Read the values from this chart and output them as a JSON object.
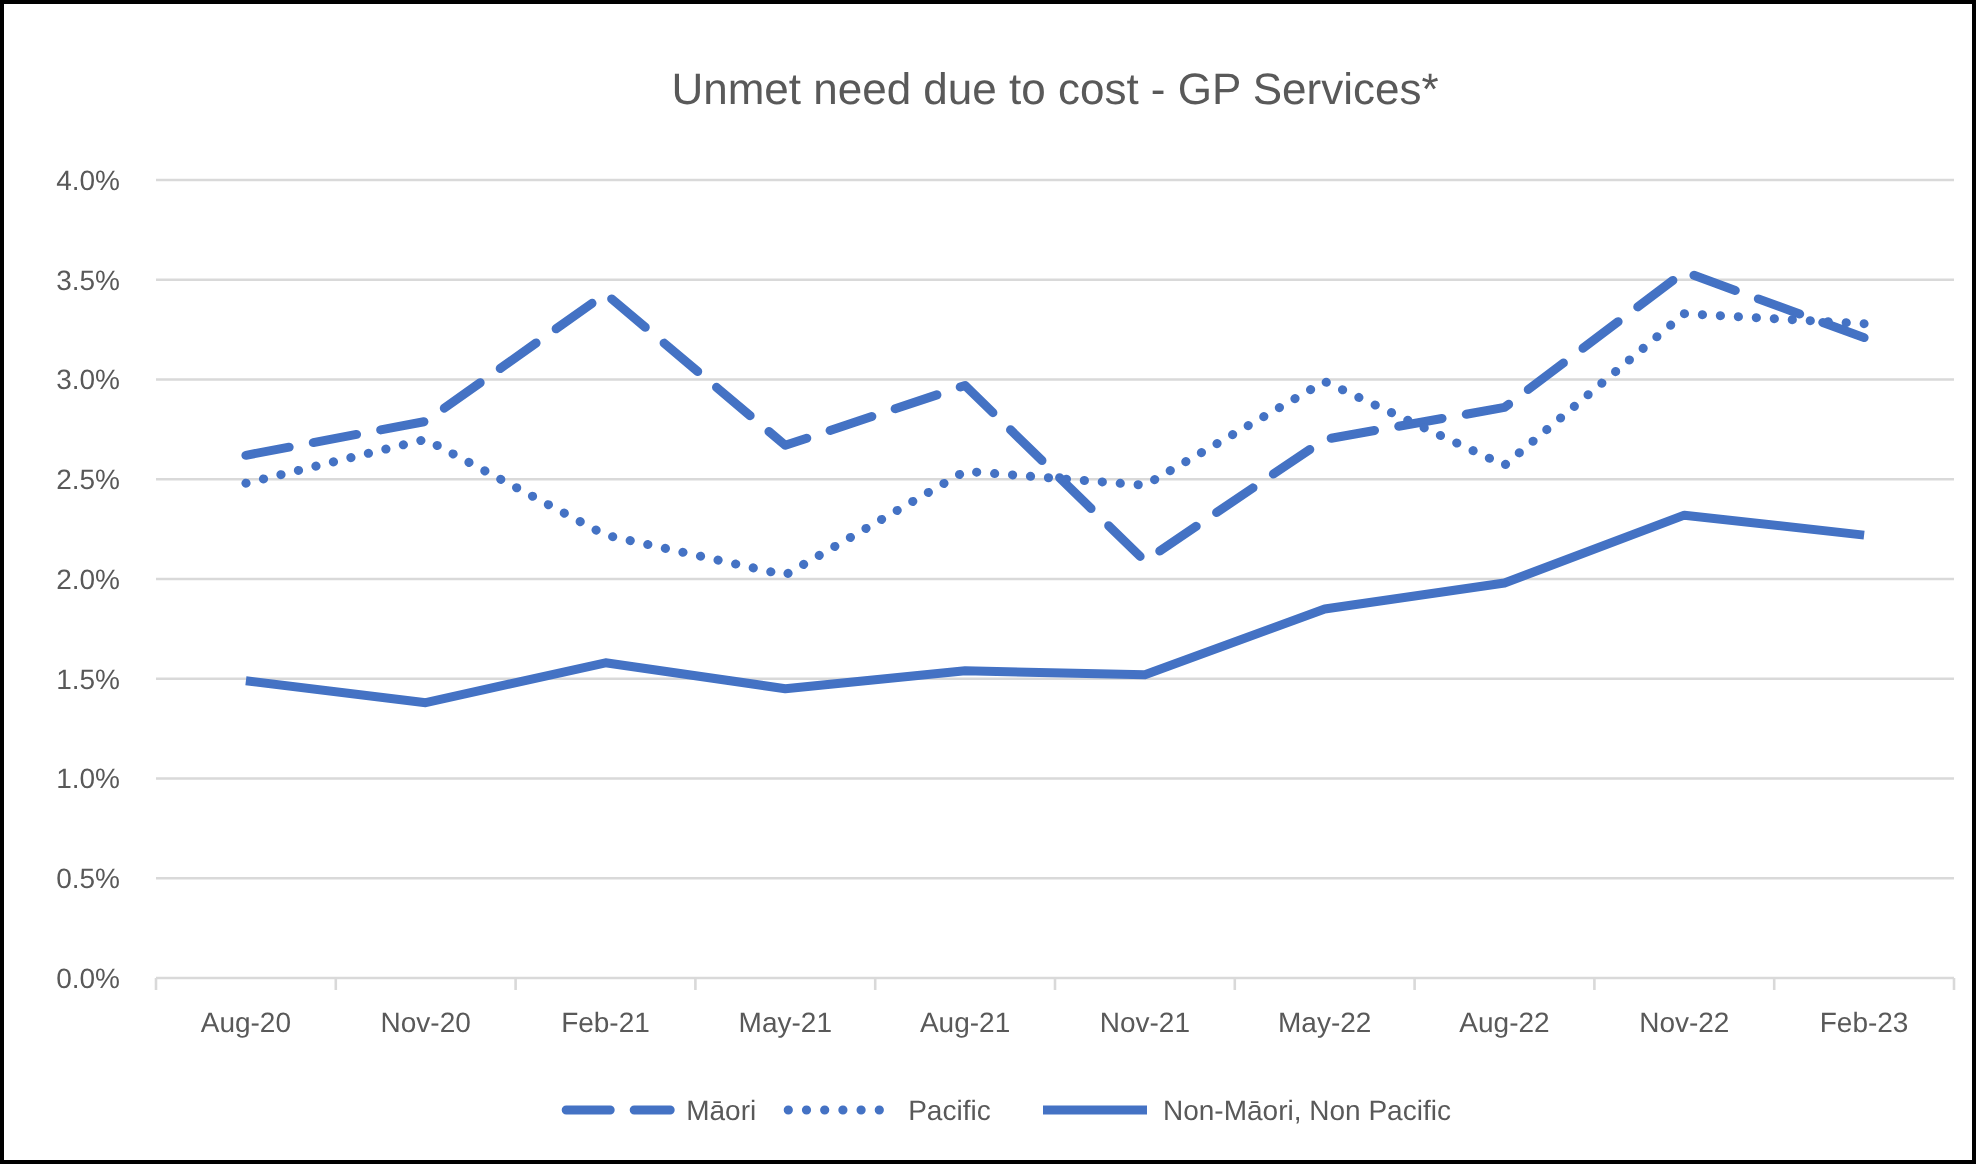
{
  "chart_data": {
    "type": "line",
    "title": "Unmet need due to cost - GP Services*",
    "categories": [
      "Aug-20",
      "Nov-20",
      "Feb-21",
      "May-21",
      "Aug-21",
      "Nov-21",
      "May-22",
      "Aug-22",
      "Nov-22",
      "Feb-23"
    ],
    "series": [
      {
        "name": "Māori",
        "color": "#4472c4",
        "line_style": "dashed",
        "values": [
          2.62,
          2.79,
          3.43,
          2.67,
          2.97,
          2.09,
          2.7,
          2.86,
          3.54,
          3.21
        ]
      },
      {
        "name": "Pacific",
        "color": "#4472c4",
        "line_style": "dotted",
        "values": [
          2.48,
          2.7,
          2.22,
          2.02,
          2.54,
          2.47,
          2.99,
          2.57,
          3.33,
          3.28
        ]
      },
      {
        "name": "Non-Māori, Non Pacific",
        "color": "#4472c4",
        "line_style": "solid",
        "values": [
          1.49,
          1.38,
          1.58,
          1.45,
          1.54,
          1.52,
          1.85,
          1.98,
          2.32,
          2.22
        ]
      }
    ],
    "ylim": [
      0,
      4
    ],
    "yticks": [
      {
        "value": 0,
        "label": "0.0%"
      },
      {
        "value": 0.5,
        "label": "0.5%"
      },
      {
        "value": 1,
        "label": "1.0%"
      },
      {
        "value": 1.5,
        "label": "1.5%"
      },
      {
        "value": 2,
        "label": "2.0%"
      },
      {
        "value": 2.5,
        "label": "2.5%"
      },
      {
        "value": 3,
        "label": "3.0%"
      },
      {
        "value": 3.5,
        "label": "3.5%"
      },
      {
        "value": 4,
        "label": "4.0%"
      }
    ],
    "grid": "y",
    "legend": "bottom",
    "marker": "none"
  }
}
